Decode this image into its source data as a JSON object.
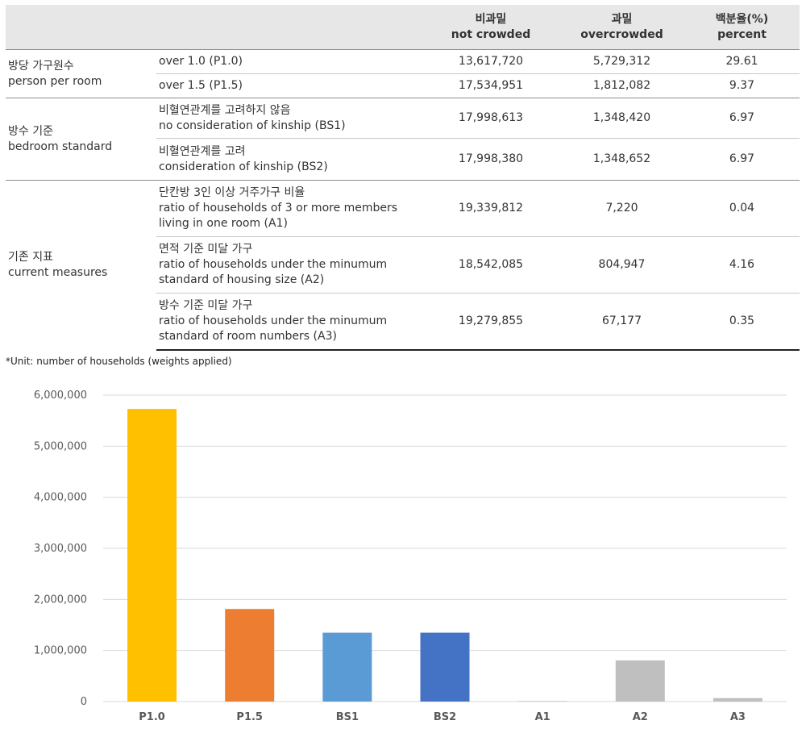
{
  "table": {
    "headers": {
      "category": "",
      "measure": "",
      "not_crowded": [
        "비과밀",
        "not crowded"
      ],
      "overcrowded": [
        "과밀",
        "overcrowded"
      ],
      "percent": [
        "백분율(%)",
        "percent"
      ]
    },
    "groups": [
      {
        "label": [
          "방당 가구원수",
          "person per room"
        ],
        "rows": [
          {
            "measure": [
              "over 1.0 (P1.0)"
            ],
            "not_crowded": "13,617,720",
            "overcrowded": "5,729,312",
            "percent": "29.61"
          },
          {
            "measure": [
              "over 1.5 (P1.5)"
            ],
            "not_crowded": "17,534,951",
            "overcrowded": "1,812,082",
            "percent": "9.37"
          }
        ]
      },
      {
        "label": [
          "방수 기준",
          "bedroom standard"
        ],
        "rows": [
          {
            "measure": [
              "비혈연관계를 고려하지 않음",
              "no consideration of kinship (BS1)"
            ],
            "not_crowded": "17,998,613",
            "overcrowded": "1,348,420",
            "percent": "6.97"
          },
          {
            "measure": [
              "비혈연관계를 고려",
              "consideration of kinship (BS2)"
            ],
            "not_crowded": "17,998,380",
            "overcrowded": "1,348,652",
            "percent": "6.97"
          }
        ]
      },
      {
        "label": [
          "기존 지표",
          "current measures"
        ],
        "rows": [
          {
            "measure": [
              "단칸방 3인 이상 거주가구 비율",
              "ratio of households of 3 or more members",
              "living in one room (A1)"
            ],
            "not_crowded": "19,339,812",
            "overcrowded": "7,220",
            "percent": "0.04"
          },
          {
            "measure": [
              "면적 기준 미달 가구",
              "ratio of households under the minumum",
              "standard of housing size (A2)"
            ],
            "not_crowded": "18,542,085",
            "overcrowded": "804,947",
            "percent": "4.16"
          },
          {
            "measure": [
              "방수 기준 미달 가구",
              "ratio of households under the minumum",
              "standard of room numbers (A3)"
            ],
            "not_crowded": "19,279,855",
            "overcrowded": "67,177",
            "percent": "0.35"
          }
        ]
      }
    ]
  },
  "note": "*Unit: number of households (weights applied)",
  "chart_data": {
    "type": "bar",
    "categories": [
      "P1.0",
      "P1.5",
      "BS1",
      "BS2",
      "A1",
      "A2",
      "A3"
    ],
    "values": [
      5729312,
      1812082,
      1348420,
      1348652,
      7220,
      804947,
      67177
    ],
    "colors": [
      "#ffc000",
      "#ed7d31",
      "#5b9bd5",
      "#4472c4",
      "#a5a5a5",
      "#bfbfbf",
      "#bfbfbf"
    ],
    "yticks": [
      "0",
      "1,000,000",
      "2,000,000",
      "3,000,000",
      "4,000,000",
      "5,000,000",
      "6,000,000"
    ],
    "ylim": [
      0,
      6000000
    ],
    "grid": true,
    "legend": "none"
  }
}
